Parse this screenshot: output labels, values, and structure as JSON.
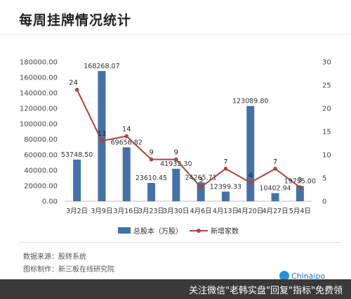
{
  "title": "每周挂牌情况统计",
  "colors": {
    "bar": "#4472a8",
    "line": "#b0433c"
  },
  "chart_data": {
    "type": "bar+line",
    "categories": [
      "3月2日",
      "3月9日",
      "3月16日",
      "3月23日",
      "3月30日",
      "4月6日",
      "4月13日",
      "4月20日",
      "4月27日",
      "5月4日"
    ],
    "series": [
      {
        "name": "总股本（万股）",
        "type": "bar",
        "axis": "left",
        "values": [
          53748.5,
          168268.07,
          69656.82,
          23610.45,
          41932.3,
          24265.71,
          12399.33,
          123089.8,
          10402.94,
          19755.0
        ],
        "labels": [
          "53748.50",
          "168268.07",
          "69656.82",
          "23610.45",
          "41932.30",
          "24265.71",
          "12399.33",
          "123089.80",
          "10402.94",
          "19755.00"
        ]
      },
      {
        "name": "新增家数",
        "type": "line",
        "axis": "right",
        "values": [
          24,
          13,
          14,
          9,
          9,
          3,
          7,
          4,
          7,
          3
        ],
        "labels": [
          "24",
          "13",
          "14",
          "9",
          "9",
          "3",
          "7",
          "4",
          "7",
          "3"
        ]
      }
    ],
    "left_axis": {
      "min": 0,
      "max": 180000,
      "step": 20000,
      "ticks": [
        "0.00",
        "20000.00",
        "40000.00",
        "60000.00",
        "80000.00",
        "100000.00",
        "120000.00",
        "140000.00",
        "160000.00",
        "180000.00"
      ]
    },
    "right_axis": {
      "min": 0,
      "max": 30,
      "step": 5,
      "ticks": [
        "0",
        "5",
        "10",
        "15",
        "20",
        "25",
        "30"
      ]
    },
    "grid": false,
    "legend_position": "bottom"
  },
  "footer": {
    "source": "数据来源：股转系统",
    "maker": "图标制作：新三板在线研究院"
  },
  "logo_text": "Chinaipo",
  "caption": "关注微信\"老韩实盘\"回复\"指标\"免费领"
}
